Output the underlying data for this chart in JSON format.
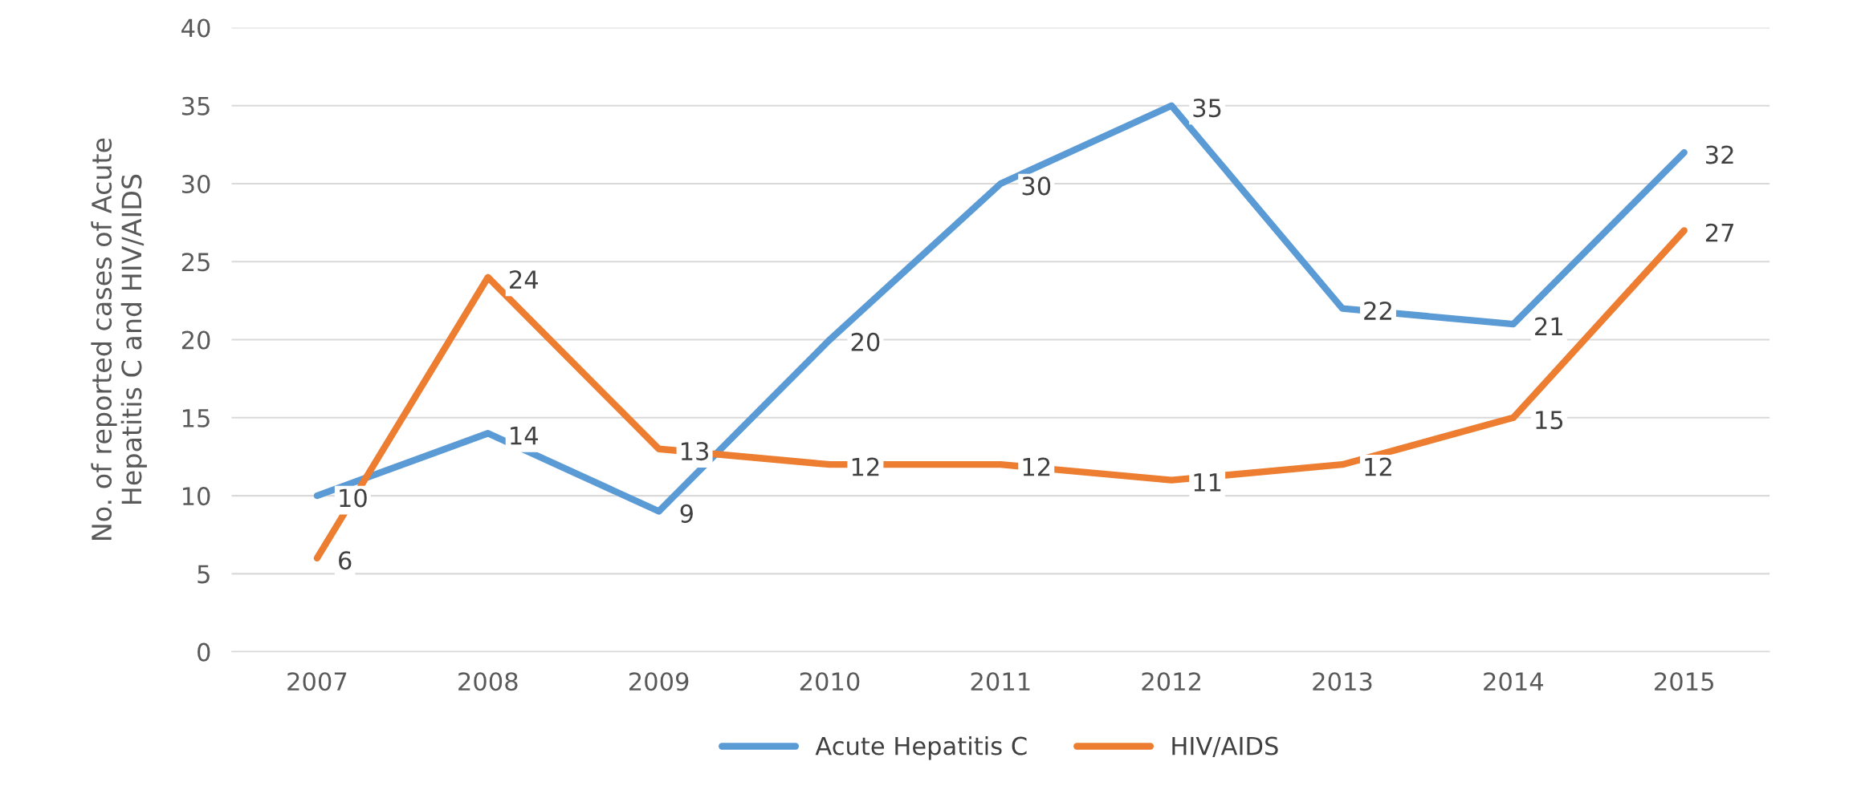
{
  "chart_data": {
    "type": "line",
    "ylabel": "No. of reported cases of Acute\nHepatitis C and HIV/AIDS",
    "categories": [
      "2007",
      "2008",
      "2009",
      "2010",
      "2011",
      "2012",
      "2013",
      "2014",
      "2015"
    ],
    "series": [
      {
        "name": "Acute Hepatitis C",
        "color": "#5b9bd5",
        "values": [
          10,
          14,
          9,
          20,
          30,
          35,
          22,
          21,
          32
        ]
      },
      {
        "name": "HIV/AIDS",
        "color": "#ed7d31",
        "values": [
          6,
          24,
          13,
          12,
          12,
          11,
          12,
          15,
          27
        ]
      }
    ],
    "ylim": [
      0,
      40
    ],
    "yticks": [
      0,
      5,
      10,
      15,
      20,
      25,
      30,
      35,
      40
    ],
    "grid": "y",
    "legend": "bottom",
    "marker": "none",
    "line_style": "solid",
    "data_labels": true
  }
}
